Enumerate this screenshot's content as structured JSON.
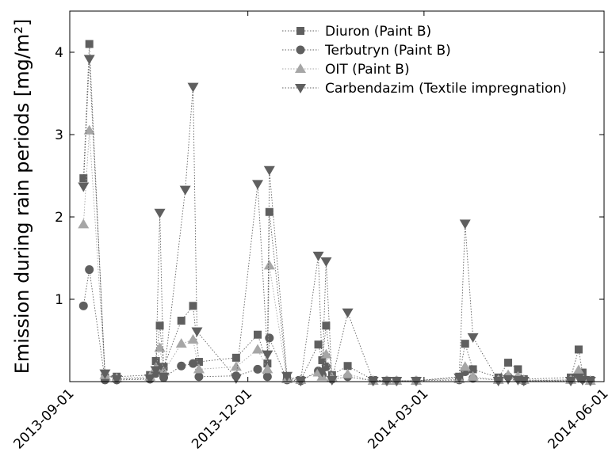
{
  "chart_data": {
    "type": "scatter",
    "title": "",
    "xlabel": "",
    "ylabel": "Emission during rain periods [mg/m²]",
    "x_type": "date",
    "xlim": [
      "2013-09-01",
      "2014-06-01"
    ],
    "ylim": [
      0,
      4.5
    ],
    "x_ticks": [
      "2013-09-01",
      "2013-12-01",
      "2014-03-01",
      "2014-06-01"
    ],
    "y_ticks": [
      1,
      2,
      3,
      4
    ],
    "grid": false,
    "legend_position": "top-right",
    "series": [
      {
        "name": "Diuron (Paint B)",
        "marker": "square",
        "color": "#5f5f5f",
        "points": [
          {
            "x": "2013-09-08",
            "y": 2.47
          },
          {
            "x": "2013-09-11",
            "y": 4.1
          },
          {
            "x": "2013-09-19",
            "y": 0.05
          },
          {
            "x": "2013-09-25",
            "y": 0.06
          },
          {
            "x": "2013-10-12",
            "y": 0.08
          },
          {
            "x": "2013-10-15",
            "y": 0.25
          },
          {
            "x": "2013-10-17",
            "y": 0.68
          },
          {
            "x": "2013-10-19",
            "y": 0.18
          },
          {
            "x": "2013-10-28",
            "y": 0.74
          },
          {
            "x": "2013-11-03",
            "y": 0.92
          },
          {
            "x": "2013-11-06",
            "y": 0.24
          },
          {
            "x": "2013-11-25",
            "y": 0.29
          },
          {
            "x": "2013-12-06",
            "y": 0.57
          },
          {
            "x": "2013-12-11",
            "y": 0.22
          },
          {
            "x": "2013-12-12",
            "y": 2.06
          },
          {
            "x": "2013-12-21",
            "y": 0.04
          },
          {
            "x": "2013-12-28",
            "y": 0.02
          },
          {
            "x": "2014-01-06",
            "y": 0.45
          },
          {
            "x": "2014-01-08",
            "y": 0.26
          },
          {
            "x": "2014-01-10",
            "y": 0.68
          },
          {
            "x": "2014-01-13",
            "y": 0.08
          },
          {
            "x": "2014-01-21",
            "y": 0.19
          },
          {
            "x": "2014-02-03",
            "y": 0.02
          },
          {
            "x": "2014-02-10",
            "y": 0.01
          },
          {
            "x": "2014-02-15",
            "y": 0.01
          },
          {
            "x": "2014-02-25",
            "y": 0.01
          },
          {
            "x": "2014-03-19",
            "y": 0.06
          },
          {
            "x": "2014-03-22",
            "y": 0.46
          },
          {
            "x": "2014-03-26",
            "y": 0.15
          },
          {
            "x": "2014-04-08",
            "y": 0.05
          },
          {
            "x": "2014-04-13",
            "y": 0.23
          },
          {
            "x": "2014-04-18",
            "y": 0.15
          },
          {
            "x": "2014-04-21",
            "y": 0.03
          },
          {
            "x": "2014-05-15",
            "y": 0.05
          },
          {
            "x": "2014-05-19",
            "y": 0.39
          },
          {
            "x": "2014-05-21",
            "y": 0.11
          },
          {
            "x": "2014-05-25",
            "y": 0.02
          }
        ]
      },
      {
        "name": "Terbutryn (Paint B)",
        "marker": "circle",
        "color": "#5f5f5f",
        "points": [
          {
            "x": "2013-09-08",
            "y": 0.92
          },
          {
            "x": "2013-09-11",
            "y": 1.36
          },
          {
            "x": "2013-09-19",
            "y": 0.02
          },
          {
            "x": "2013-09-25",
            "y": 0.02
          },
          {
            "x": "2013-10-12",
            "y": 0.03
          },
          {
            "x": "2013-10-15",
            "y": 0.1
          },
          {
            "x": "2013-10-17",
            "y": 0.15
          },
          {
            "x": "2013-10-19",
            "y": 0.05
          },
          {
            "x": "2013-10-28",
            "y": 0.19
          },
          {
            "x": "2013-11-03",
            "y": 0.22
          },
          {
            "x": "2013-11-06",
            "y": 0.06
          },
          {
            "x": "2013-11-25",
            "y": 0.07
          },
          {
            "x": "2013-12-06",
            "y": 0.15
          },
          {
            "x": "2013-12-11",
            "y": 0.06
          },
          {
            "x": "2013-12-12",
            "y": 0.53
          },
          {
            "x": "2013-12-21",
            "y": 0.02
          },
          {
            "x": "2013-12-28",
            "y": 0.01
          },
          {
            "x": "2014-01-06",
            "y": 0.13
          },
          {
            "x": "2014-01-08",
            "y": 0.08
          },
          {
            "x": "2014-01-10",
            "y": 0.18
          },
          {
            "x": "2014-01-13",
            "y": 0.03
          },
          {
            "x": "2014-01-21",
            "y": 0.06
          },
          {
            "x": "2014-02-03",
            "y": 0.01
          },
          {
            "x": "2014-02-10",
            "y": 0.01
          },
          {
            "x": "2014-02-15",
            "y": 0.01
          },
          {
            "x": "2014-02-25",
            "y": 0.01
          },
          {
            "x": "2014-03-19",
            "y": 0.02
          },
          {
            "x": "2014-03-22",
            "y": 0.12
          },
          {
            "x": "2014-03-26",
            "y": 0.04
          },
          {
            "x": "2014-04-08",
            "y": 0.02
          },
          {
            "x": "2014-04-13",
            "y": 0.06
          },
          {
            "x": "2014-04-18",
            "y": 0.04
          },
          {
            "x": "2014-04-21",
            "y": 0.01
          },
          {
            "x": "2014-05-15",
            "y": 0.02
          },
          {
            "x": "2014-05-19",
            "y": 0.1
          },
          {
            "x": "2014-05-21",
            "y": 0.03
          },
          {
            "x": "2014-05-25",
            "y": 0.01
          }
        ]
      },
      {
        "name": "OIT (Paint B)",
        "marker": "triangle-up",
        "color": "#a6a6a6",
        "points": [
          {
            "x": "2013-09-08",
            "y": 1.91
          },
          {
            "x": "2013-09-11",
            "y": 3.05
          },
          {
            "x": "2013-09-19",
            "y": 0.08
          },
          {
            "x": "2013-09-25",
            "y": 0.04
          },
          {
            "x": "2013-10-12",
            "y": 0.06
          },
          {
            "x": "2013-10-15",
            "y": 0.17
          },
          {
            "x": "2013-10-17",
            "y": 0.41
          },
          {
            "x": "2013-10-19",
            "y": 0.12
          },
          {
            "x": "2013-10-28",
            "y": 0.46
          },
          {
            "x": "2013-11-03",
            "y": 0.51
          },
          {
            "x": "2013-11-06",
            "y": 0.15
          },
          {
            "x": "2013-11-25",
            "y": 0.18
          },
          {
            "x": "2013-12-06",
            "y": 0.39
          },
          {
            "x": "2013-12-11",
            "y": 0.15
          },
          {
            "x": "2013-12-12",
            "y": 1.41
          },
          {
            "x": "2013-12-21",
            "y": 0.03
          },
          {
            "x": "2013-12-28",
            "y": 0.02
          },
          {
            "x": "2014-01-06",
            "y": 0.11
          },
          {
            "x": "2014-01-08",
            "y": 0.06
          },
          {
            "x": "2014-01-10",
            "y": 0.33
          },
          {
            "x": "2014-01-13",
            "y": 0.05
          },
          {
            "x": "2014-01-21",
            "y": 0.09
          },
          {
            "x": "2014-02-03",
            "y": 0.01
          },
          {
            "x": "2014-02-10",
            "y": 0.01
          },
          {
            "x": "2014-02-15",
            "y": 0.01
          },
          {
            "x": "2014-02-25",
            "y": 0.01
          },
          {
            "x": "2014-03-19",
            "y": 0.03
          },
          {
            "x": "2014-03-22",
            "y": 0.18
          },
          {
            "x": "2014-03-26",
            "y": 0.06
          },
          {
            "x": "2014-04-08",
            "y": 0.02
          },
          {
            "x": "2014-04-13",
            "y": 0.08
          },
          {
            "x": "2014-04-18",
            "y": 0.06
          },
          {
            "x": "2014-04-21",
            "y": 0.02
          },
          {
            "x": "2014-05-15",
            "y": 0.02
          },
          {
            "x": "2014-05-19",
            "y": 0.14
          },
          {
            "x": "2014-05-21",
            "y": 0.04
          },
          {
            "x": "2014-05-25",
            "y": 0.01
          }
        ]
      },
      {
        "name": "Carbendazim (Textile impregnation)",
        "marker": "triangle-down",
        "color": "#5f5f5f",
        "points": [
          {
            "x": "2013-09-08",
            "y": 2.37
          },
          {
            "x": "2013-09-11",
            "y": 3.92
          },
          {
            "x": "2013-09-19",
            "y": 0.1
          },
          {
            "x": "2013-09-25",
            "y": 0.03
          },
          {
            "x": "2013-10-12",
            "y": 0.04
          },
          {
            "x": "2013-10-15",
            "y": 0.14
          },
          {
            "x": "2013-10-17",
            "y": 2.05
          },
          {
            "x": "2013-10-19",
            "y": 0.06
          },
          {
            "x": "2013-10-30",
            "y": 2.33
          },
          {
            "x": "2013-11-03",
            "y": 3.58
          },
          {
            "x": "2013-11-05",
            "y": 0.61
          },
          {
            "x": "2013-11-25",
            "y": 0.04
          },
          {
            "x": "2013-12-06",
            "y": 2.4
          },
          {
            "x": "2013-12-11",
            "y": 0.33
          },
          {
            "x": "2013-12-12",
            "y": 2.57
          },
          {
            "x": "2013-12-21",
            "y": 0.07
          },
          {
            "x": "2013-12-28",
            "y": 0.01
          },
          {
            "x": "2014-01-06",
            "y": 1.53
          },
          {
            "x": "2014-01-08",
            "y": 0.12
          },
          {
            "x": "2014-01-10",
            "y": 1.46
          },
          {
            "x": "2014-01-13",
            "y": 0.02
          },
          {
            "x": "2014-01-21",
            "y": 0.84
          },
          {
            "x": "2014-02-03",
            "y": 0.01
          },
          {
            "x": "2014-02-10",
            "y": 0.01
          },
          {
            "x": "2014-02-15",
            "y": 0.01
          },
          {
            "x": "2014-02-25",
            "y": 0.01
          },
          {
            "x": "2014-03-19",
            "y": 0.05
          },
          {
            "x": "2014-03-22",
            "y": 1.92
          },
          {
            "x": "2014-03-26",
            "y": 0.54
          },
          {
            "x": "2014-04-08",
            "y": 0.01
          },
          {
            "x": "2014-04-13",
            "y": 0.03
          },
          {
            "x": "2014-04-18",
            "y": 0.02
          },
          {
            "x": "2014-04-21",
            "y": 0.01
          },
          {
            "x": "2014-05-15",
            "y": 0.01
          },
          {
            "x": "2014-05-19",
            "y": 0.05
          },
          {
            "x": "2014-05-21",
            "y": 0.02
          },
          {
            "x": "2014-05-25",
            "y": 0.01
          }
        ]
      }
    ]
  }
}
